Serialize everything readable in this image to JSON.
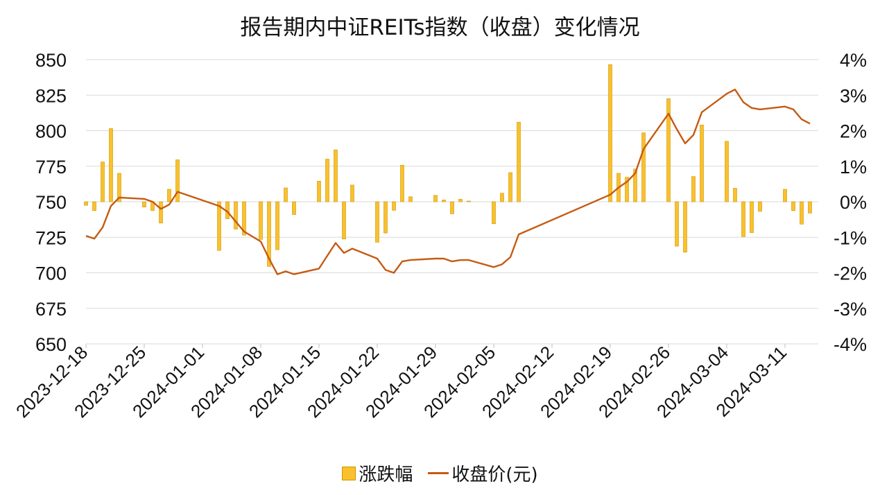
{
  "chart_data": {
    "type": "bar+line",
    "title": "报告期内中证REITs指数（收盘）变化情况",
    "y_left": {
      "min": 650,
      "max": 850,
      "ticks": [
        850,
        825,
        800,
        775,
        750,
        725,
        700,
        675,
        650
      ]
    },
    "y_right": {
      "min": -4,
      "max": 4,
      "ticks": [
        "4%",
        "3%",
        "2%",
        "1%",
        "0%",
        "-1%",
        "-2%",
        "-3%",
        "-4%"
      ]
    },
    "x_ticks": [
      "2023-12-18",
      "2023-12-25",
      "2024-01-01",
      "2024-01-08",
      "2024-01-15",
      "2024-01-22",
      "2024-01-29",
      "2024-02-05",
      "2024-02-12",
      "2024-02-19",
      "2024-02-26",
      "2024-03-04",
      "2024-03-11"
    ],
    "x_range": [
      "2023-12-18",
      "2024-03-15"
    ],
    "grid": true,
    "legend_position": "bottom",
    "series": [
      {
        "name": "涨跌幅",
        "kind": "bar",
        "axis": "right",
        "color": "#fbc02d",
        "points": [
          [
            "2023-12-18",
            -0.1
          ],
          [
            "2023-12-19",
            -0.25
          ],
          [
            "2023-12-20",
            1.12
          ],
          [
            "2023-12-21",
            2.06
          ],
          [
            "2023-12-22",
            0.8
          ],
          [
            "2023-12-25",
            -0.15
          ],
          [
            "2023-12-26",
            -0.25
          ],
          [
            "2023-12-27",
            -0.6
          ],
          [
            "2023-12-28",
            0.35
          ],
          [
            "2023-12-29",
            1.18
          ],
          [
            "2024-01-03",
            -1.37
          ],
          [
            "2024-01-04",
            -0.48
          ],
          [
            "2024-01-05",
            -0.77
          ],
          [
            "2024-01-06",
            -0.94
          ],
          [
            "2024-01-08",
            -1.06
          ],
          [
            "2024-01-09",
            -1.82
          ],
          [
            "2024-01-10",
            -1.35
          ],
          [
            "2024-01-11",
            0.39
          ],
          [
            "2024-01-12",
            -0.36
          ],
          [
            "2024-01-15",
            0.58
          ],
          [
            "2024-01-16",
            1.2
          ],
          [
            "2024-01-17",
            1.46
          ],
          [
            "2024-01-18",
            -1.05
          ],
          [
            "2024-01-19",
            0.47
          ],
          [
            "2024-01-22",
            -1.14
          ],
          [
            "2024-01-23",
            -0.88
          ],
          [
            "2024-01-24",
            -0.24
          ],
          [
            "2024-01-25",
            1.03
          ],
          [
            "2024-01-26",
            0.14
          ],
          [
            "2024-01-29",
            0.18
          ],
          [
            "2024-01-30",
            0.05
          ],
          [
            "2024-01-31",
            -0.34
          ],
          [
            "2024-02-01",
            0.07
          ],
          [
            "2024-02-02",
            0.02
          ],
          [
            "2024-02-05",
            -0.62
          ],
          [
            "2024-02-06",
            0.24
          ],
          [
            "2024-02-07",
            0.82
          ],
          [
            "2024-02-08",
            2.24
          ],
          [
            "2024-02-19",
            3.86
          ],
          [
            "2024-02-20",
            0.8
          ],
          [
            "2024-02-21",
            0.69
          ],
          [
            "2024-02-22",
            0.92
          ],
          [
            "2024-02-23",
            1.94
          ],
          [
            "2024-02-26",
            2.9
          ],
          [
            "2024-02-27",
            -1.25
          ],
          [
            "2024-02-28",
            -1.42
          ],
          [
            "2024-02-29",
            0.71
          ],
          [
            "2024-03-01",
            2.16
          ],
          [
            "2024-03-04",
            1.7
          ],
          [
            "2024-03-05",
            0.38
          ],
          [
            "2024-03-06",
            -0.98
          ],
          [
            "2024-03-07",
            -0.87
          ],
          [
            "2024-03-08",
            -0.27
          ],
          [
            "2024-03-11",
            0.35
          ],
          [
            "2024-03-12",
            -0.25
          ],
          [
            "2024-03-13",
            -0.63
          ],
          [
            "2024-03-14",
            -0.32
          ]
        ]
      },
      {
        "name": "收盘价(元)",
        "kind": "line",
        "axis": "left",
        "color": "#c55a11",
        "points": [
          [
            "2023-12-18",
            726
          ],
          [
            "2023-12-19",
            724
          ],
          [
            "2023-12-20",
            732
          ],
          [
            "2023-12-21",
            747
          ],
          [
            "2023-12-22",
            753
          ],
          [
            "2023-12-25",
            752
          ],
          [
            "2023-12-26",
            750
          ],
          [
            "2023-12-27",
            745
          ],
          [
            "2023-12-28",
            748
          ],
          [
            "2023-12-29",
            757
          ],
          [
            "2024-01-03",
            747
          ],
          [
            "2024-01-04",
            743
          ],
          [
            "2024-01-05",
            736
          ],
          [
            "2024-01-06",
            729
          ],
          [
            "2024-01-08",
            722
          ],
          [
            "2024-01-09",
            710
          ],
          [
            "2024-01-10",
            699
          ],
          [
            "2024-01-11",
            701
          ],
          [
            "2024-01-12",
            699
          ],
          [
            "2024-01-15",
            703
          ],
          [
            "2024-01-16",
            712
          ],
          [
            "2024-01-17",
            721
          ],
          [
            "2024-01-18",
            714
          ],
          [
            "2024-01-19",
            717
          ],
          [
            "2024-01-22",
            710
          ],
          [
            "2024-01-23",
            702
          ],
          [
            "2024-01-24",
            700
          ],
          [
            "2024-01-25",
            708
          ],
          [
            "2024-01-26",
            709
          ],
          [
            "2024-01-29",
            710
          ],
          [
            "2024-01-30",
            710
          ],
          [
            "2024-01-31",
            708
          ],
          [
            "2024-02-01",
            709
          ],
          [
            "2024-02-02",
            709
          ],
          [
            "2024-02-05",
            704
          ],
          [
            "2024-02-06",
            706
          ],
          [
            "2024-02-07",
            711
          ],
          [
            "2024-02-08",
            727
          ],
          [
            "2024-02-19",
            755
          ],
          [
            "2024-02-20",
            760
          ],
          [
            "2024-02-21",
            764
          ],
          [
            "2024-02-22",
            770
          ],
          [
            "2024-02-23",
            787
          ],
          [
            "2024-02-26",
            812
          ],
          [
            "2024-02-27",
            801
          ],
          [
            "2024-02-28",
            791
          ],
          [
            "2024-02-29",
            797
          ],
          [
            "2024-03-01",
            813
          ],
          [
            "2024-03-04",
            826
          ],
          [
            "2024-03-05",
            829
          ],
          [
            "2024-03-06",
            820
          ],
          [
            "2024-03-07",
            816
          ],
          [
            "2024-03-08",
            815
          ],
          [
            "2024-03-11",
            817
          ],
          [
            "2024-03-12",
            815
          ],
          [
            "2024-03-13",
            808
          ],
          [
            "2024-03-14",
            805
          ]
        ]
      }
    ]
  }
}
